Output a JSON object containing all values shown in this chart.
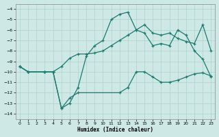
{
  "xlabel": "Humidex (Indice chaleur)",
  "bg_color": "#cde8e5",
  "line_color": "#1a7a6e",
  "grid_color": "#aed0cc",
  "xlim": [
    -0.5,
    23.5
  ],
  "ylim": [
    -14.5,
    -3.5
  ],
  "xticks": [
    0,
    1,
    2,
    3,
    4,
    5,
    6,
    7,
    8,
    9,
    10,
    11,
    12,
    13,
    14,
    15,
    16,
    17,
    18,
    19,
    20,
    21,
    22,
    23
  ],
  "yticks": [
    -14,
    -13,
    -12,
    -11,
    -10,
    -9,
    -8,
    -7,
    -6,
    -5,
    -4
  ],
  "line1_x": [
    0,
    1,
    3,
    4,
    5,
    6,
    7,
    8,
    9,
    10,
    11,
    12,
    13,
    14,
    15,
    16,
    17,
    18,
    19,
    20,
    21,
    22,
    23
  ],
  "line1_y": [
    -9.5,
    -10,
    -10,
    -10,
    -13.5,
    -13.0,
    -11.5,
    -8.5,
    -7.5,
    -7.0,
    -5.0,
    -4.5,
    -4.3,
    -6.0,
    -6.3,
    -7.5,
    -7.3,
    -7.5,
    -6.0,
    -6.5,
    -8.0,
    -8.8,
    -10.5
  ],
  "line2_x": [
    0,
    1,
    3,
    4,
    5,
    6,
    7,
    8,
    9,
    10,
    11,
    12,
    13,
    14,
    15,
    16,
    17,
    18,
    19,
    20,
    21,
    22,
    23
  ],
  "line2_y": [
    -9.5,
    -10,
    -10,
    -10,
    -9.5,
    -8.7,
    -8.3,
    -8.3,
    -8.2,
    -8.0,
    -7.5,
    -7.0,
    -6.5,
    -6.0,
    -5.5,
    -6.3,
    -6.5,
    -6.3,
    -6.8,
    -7.1,
    -7.3,
    -5.5,
    -8.0
  ],
  "line3_x": [
    0,
    1,
    3,
    4,
    5,
    6,
    7,
    12,
    13,
    14,
    15,
    16,
    17,
    18,
    19,
    20,
    21,
    22,
    23
  ],
  "line3_y": [
    -9.5,
    -10,
    -10,
    -10,
    -13.5,
    -12.5,
    -12.0,
    -12.0,
    -11.5,
    -10.0,
    -10.0,
    -10.5,
    -11.0,
    -11.0,
    -10.8,
    -10.5,
    -10.2,
    -10.1,
    -10.4
  ]
}
